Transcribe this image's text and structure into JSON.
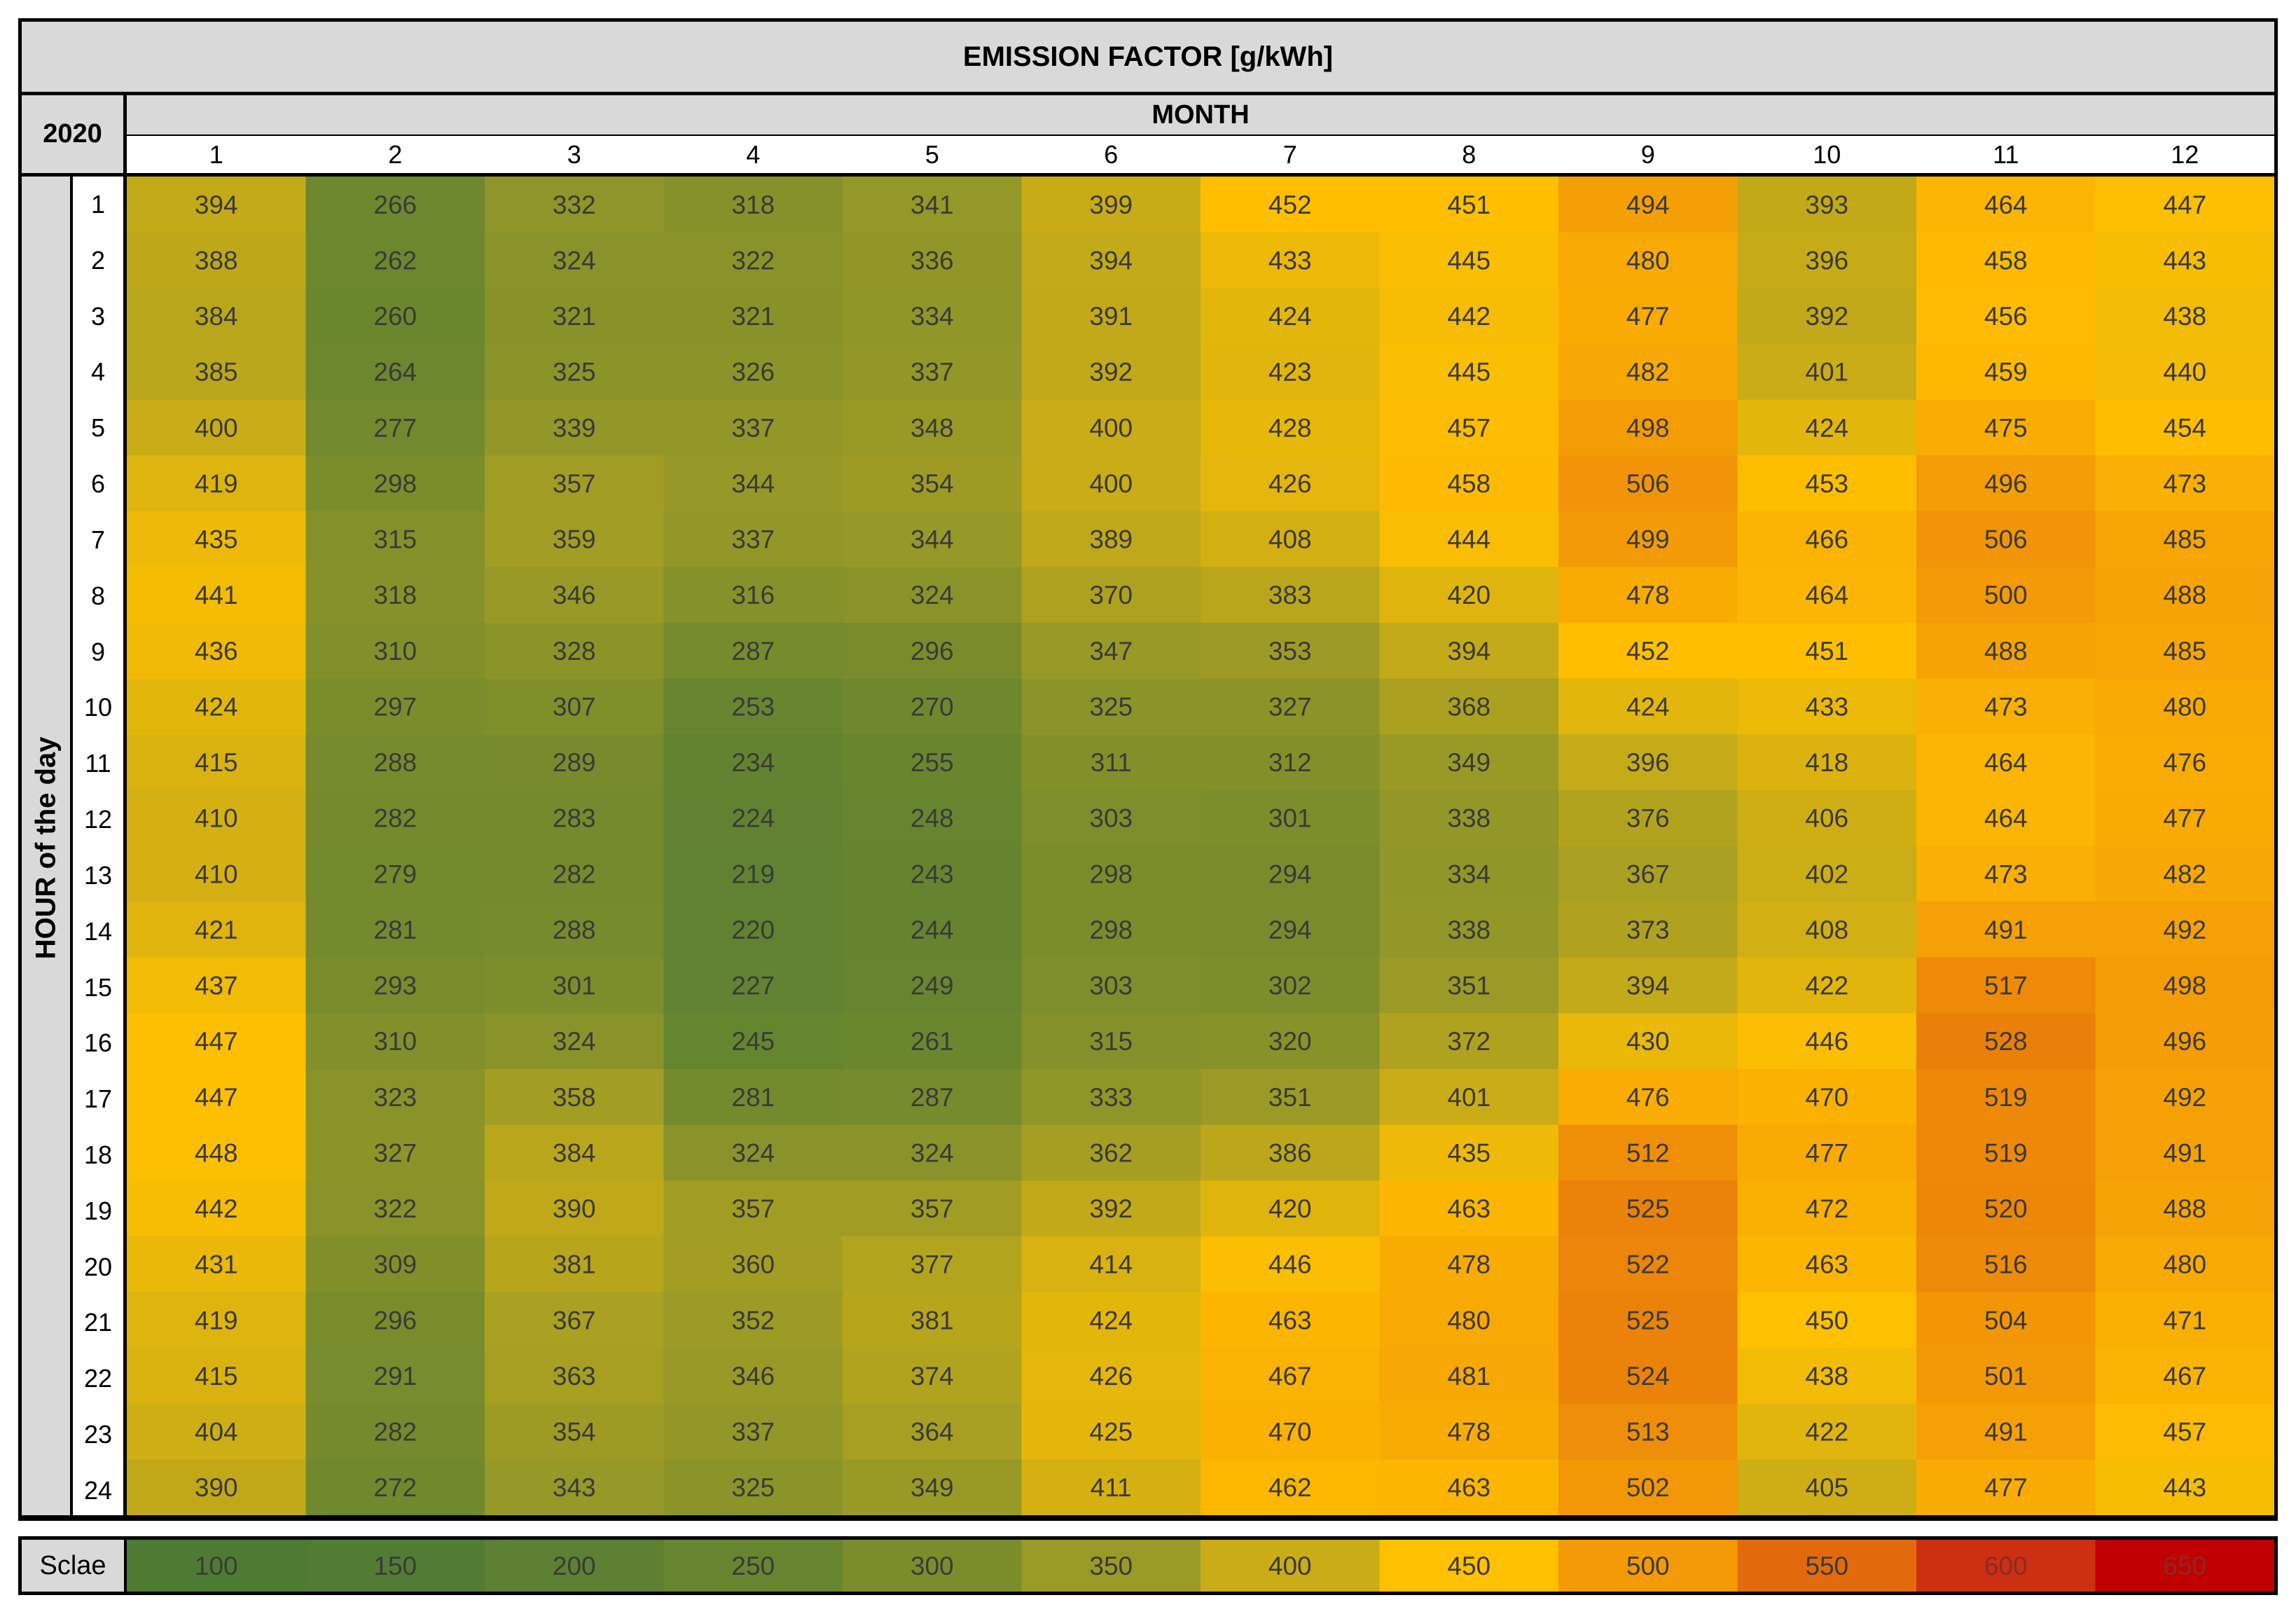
{
  "title": "EMISSION FACTOR [g/kWh]",
  "year": "2020",
  "column_header": "MONTH",
  "row_header": "HOUR of the day",
  "scale_label": "Sclae",
  "chart_data": {
    "type": "heatmap",
    "title": "EMISSION FACTOR [g/kWh]",
    "xlabel": "MONTH",
    "ylabel": "HOUR of the day",
    "months": [
      "1",
      "2",
      "3",
      "4",
      "5",
      "6",
      "7",
      "8",
      "9",
      "10",
      "11",
      "12"
    ],
    "hours": [
      "1",
      "2",
      "3",
      "4",
      "5",
      "6",
      "7",
      "8",
      "9",
      "10",
      "11",
      "12",
      "13",
      "14",
      "15",
      "16",
      "17",
      "18",
      "19",
      "20",
      "21",
      "22",
      "23",
      "24"
    ],
    "values": [
      [
        394,
        266,
        332,
        318,
        341,
        399,
        452,
        451,
        494,
        393,
        464,
        447
      ],
      [
        388,
        262,
        324,
        322,
        336,
        394,
        433,
        445,
        480,
        396,
        458,
        443
      ],
      [
        384,
        260,
        321,
        321,
        334,
        391,
        424,
        442,
        477,
        392,
        456,
        438
      ],
      [
        385,
        264,
        325,
        326,
        337,
        392,
        423,
        445,
        482,
        401,
        459,
        440
      ],
      [
        400,
        277,
        339,
        337,
        348,
        400,
        428,
        457,
        498,
        424,
        475,
        454
      ],
      [
        419,
        298,
        357,
        344,
        354,
        400,
        426,
        458,
        506,
        453,
        496,
        473
      ],
      [
        435,
        315,
        359,
        337,
        344,
        389,
        408,
        444,
        499,
        466,
        506,
        485
      ],
      [
        441,
        318,
        346,
        316,
        324,
        370,
        383,
        420,
        478,
        464,
        500,
        488
      ],
      [
        436,
        310,
        328,
        287,
        296,
        347,
        353,
        394,
        452,
        451,
        488,
        485
      ],
      [
        424,
        297,
        307,
        253,
        270,
        325,
        327,
        368,
        424,
        433,
        473,
        480
      ],
      [
        415,
        288,
        289,
        234,
        255,
        311,
        312,
        349,
        396,
        418,
        464,
        476
      ],
      [
        410,
        282,
        283,
        224,
        248,
        303,
        301,
        338,
        376,
        406,
        464,
        477
      ],
      [
        410,
        279,
        282,
        219,
        243,
        298,
        294,
        334,
        367,
        402,
        473,
        482
      ],
      [
        421,
        281,
        288,
        220,
        244,
        298,
        294,
        338,
        373,
        408,
        491,
        492
      ],
      [
        437,
        293,
        301,
        227,
        249,
        303,
        302,
        351,
        394,
        422,
        517,
        498
      ],
      [
        447,
        310,
        324,
        245,
        261,
        315,
        320,
        372,
        430,
        446,
        528,
        496
      ],
      [
        447,
        323,
        358,
        281,
        287,
        333,
        351,
        401,
        476,
        470,
        519,
        492
      ],
      [
        448,
        327,
        384,
        324,
        324,
        362,
        386,
        435,
        512,
        477,
        519,
        491
      ],
      [
        442,
        322,
        390,
        357,
        357,
        392,
        420,
        463,
        525,
        472,
        520,
        488
      ],
      [
        431,
        309,
        381,
        360,
        377,
        414,
        446,
        478,
        522,
        463,
        516,
        480
      ],
      [
        419,
        296,
        367,
        352,
        381,
        424,
        463,
        480,
        525,
        450,
        504,
        471
      ],
      [
        415,
        291,
        363,
        346,
        374,
        426,
        467,
        481,
        524,
        438,
        501,
        467
      ],
      [
        404,
        282,
        354,
        337,
        364,
        425,
        470,
        478,
        513,
        422,
        491,
        457
      ],
      [
        390,
        272,
        343,
        325,
        349,
        411,
        462,
        463,
        502,
        405,
        477,
        443
      ]
    ],
    "scale": {
      "values": [
        100,
        150,
        200,
        250,
        300,
        350,
        400,
        450,
        500,
        550,
        600,
        650
      ],
      "colors": [
        "#4e7b33",
        "#527c34",
        "#5d8033",
        "#67852f",
        "#7b8d2b",
        "#9a9a26",
        "#c9ac16",
        "#ffc000",
        "#f39a06",
        "#e36a0c",
        "#cc3010",
        "#c00000"
      ]
    }
  }
}
